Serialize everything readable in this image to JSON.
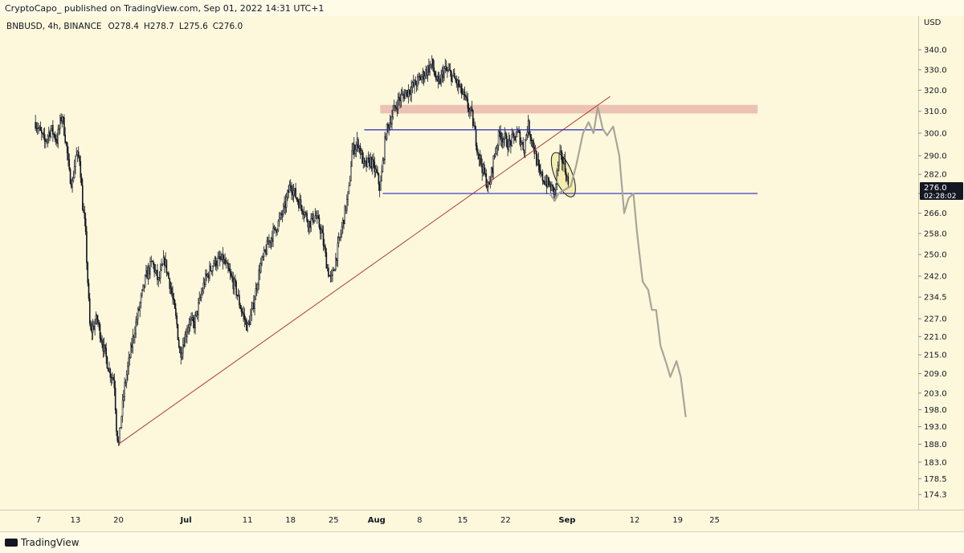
{
  "header": {
    "publish_line": "CryptoCapo_ published on TradingView.com, Sep 01, 2022 14:31 UTC+1"
  },
  "footer": {
    "brand": "TradingView"
  },
  "colors": {
    "background": "#fdf8dc",
    "candle": "#131722",
    "trendline": "#b23a3a",
    "support_lines": "#2b2bb8",
    "resistance_zone": "#e8b9ad",
    "projection": "#a8a59a",
    "highlight_ellipse": "#f1e9a0"
  },
  "chart_data": {
    "type": "candlestick",
    "symbol_line": "BNBUSD, 4h, BINANCE",
    "ohlc": {
      "open": "O278.4",
      "high": "H278.7",
      "low": "L275.6",
      "close": "C276.0"
    },
    "y_axis": {
      "unit": "USD",
      "scale": "log",
      "range": [
        171,
        345
      ],
      "ticks": [
        "340.0",
        "330.0",
        "320.0",
        "310.0",
        "300.0",
        "290.0",
        "282.0",
        "274.0",
        "266.0",
        "258.0",
        "250.0",
        "242.0",
        "234.5",
        "227.0",
        "221.0",
        "215.0",
        "209.0",
        "203.0",
        "198.0",
        "193.0",
        "188.0",
        "183.0",
        "178.5",
        "174.3"
      ]
    },
    "price_label": {
      "value": "276.0",
      "countdown": "02:28:02"
    },
    "x_axis": {
      "ticks": [
        {
          "label": "7",
          "day": 0
        },
        {
          "label": "13",
          "day": 6
        },
        {
          "label": "20",
          "day": 13
        },
        {
          "label": "Jul",
          "day": 24
        },
        {
          "label": "11",
          "day": 34
        },
        {
          "label": "18",
          "day": 41
        },
        {
          "label": "25",
          "day": 48
        },
        {
          "label": "Aug",
          "day": 55
        },
        {
          "label": "8",
          "day": 62
        },
        {
          "label": "15",
          "day": 69
        },
        {
          "label": "22",
          "day": 76
        },
        {
          "label": "Sep",
          "day": 86
        },
        {
          "label": "12",
          "day": 97
        },
        {
          "label": "19",
          "day": 104
        },
        {
          "label": "25",
          "day": 110
        }
      ]
    },
    "price_path": [
      [
        -0.5,
        305
      ],
      [
        1,
        296
      ],
      [
        2,
        302
      ],
      [
        3,
        297
      ],
      [
        3.8,
        309
      ],
      [
        4.5,
        295
      ],
      [
        5,
        282
      ],
      [
        5.5,
        278
      ],
      [
        6,
        290
      ],
      [
        6.7,
        289
      ],
      [
        7.2,
        268
      ],
      [
        7.6,
        260
      ],
      [
        8,
        240
      ],
      [
        8.4,
        222
      ],
      [
        9.5,
        227
      ],
      [
        10.5,
        218
      ],
      [
        11.5,
        210
      ],
      [
        12.3,
        207
      ],
      [
        12.7,
        192
      ],
      [
        13,
        188
      ],
      [
        14,
        205
      ],
      [
        15.5,
        222
      ],
      [
        16.5,
        232
      ],
      [
        17.5,
        242
      ],
      [
        18.5,
        247
      ],
      [
        19.5,
        240
      ],
      [
        20.5,
        248
      ],
      [
        21.5,
        238
      ],
      [
        22.5,
        225
      ],
      [
        23,
        215
      ],
      [
        24.5,
        226
      ],
      [
        25.3,
        225
      ],
      [
        27,
        240
      ],
      [
        28.5,
        247
      ],
      [
        30,
        248
      ],
      [
        31,
        243
      ],
      [
        32,
        238
      ],
      [
        33,
        230
      ],
      [
        34,
        224
      ],
      [
        34.8,
        230
      ],
      [
        36,
        245
      ],
      [
        37.5,
        255
      ],
      [
        39,
        262
      ],
      [
        40,
        268
      ],
      [
        41,
        278
      ],
      [
        42,
        272
      ],
      [
        43,
        268
      ],
      [
        44,
        262
      ],
      [
        45,
        265
      ],
      [
        46,
        259
      ],
      [
        47,
        245
      ],
      [
        47.6,
        240
      ],
      [
        48.5,
        250
      ],
      [
        49.5,
        262
      ],
      [
        50.5,
        275
      ],
      [
        51,
        292
      ],
      [
        52,
        296
      ],
      [
        53,
        285
      ],
      [
        54,
        288
      ],
      [
        55,
        282
      ],
      [
        55.6,
        276
      ],
      [
        56.5,
        300
      ],
      [
        57.5,
        308
      ],
      [
        58.5,
        315
      ],
      [
        59.5,
        318
      ],
      [
        61,
        322
      ],
      [
        62.5,
        327
      ],
      [
        64,
        333
      ],
      [
        65,
        322
      ],
      [
        66,
        330
      ],
      [
        67,
        328
      ],
      [
        68,
        324
      ],
      [
        69,
        318
      ],
      [
        70.5,
        308
      ],
      [
        71.5,
        292
      ],
      [
        72.5,
        282
      ],
      [
        73.3,
        276
      ],
      [
        74,
        288
      ],
      [
        75,
        300
      ],
      [
        76.5,
        295
      ],
      [
        78,
        300
      ],
      [
        79,
        293
      ],
      [
        79.6,
        304
      ],
      [
        80.5,
        295
      ],
      [
        81.5,
        282
      ],
      [
        82.5,
        279
      ],
      [
        83.5,
        276
      ],
      [
        84,
        274
      ],
      [
        84.7,
        290
      ],
      [
        85.5,
        287
      ],
      [
        86.3,
        276
      ]
    ],
    "ellipse": {
      "center": [
        85.4,
        282
      ],
      "price_top": 292,
      "price_bottom": 272
    },
    "trendline": [
      [
        13,
        188
      ],
      [
        93,
        317
      ]
    ],
    "resistance_zone": {
      "x": [
        55.6,
        117
      ],
      "price": [
        309,
        313
      ]
    },
    "support_lines": [
      {
        "x": [
          53,
          92
        ],
        "price": 301.5
      },
      {
        "x": [
          56,
          117
        ],
        "price": 274
      }
    ],
    "projection_path": [
      [
        83.2,
        274
      ],
      [
        84,
        271
      ],
      [
        84.6,
        274
      ],
      [
        86.6,
        277
      ],
      [
        87.5,
        286
      ],
      [
        88.6,
        300
      ],
      [
        89.5,
        305
      ],
      [
        90.3,
        300
      ],
      [
        91,
        312
      ],
      [
        91.8,
        302
      ],
      [
        92.5,
        299
      ],
      [
        93.5,
        303
      ],
      [
        94.5,
        290
      ],
      [
        95.3,
        266
      ],
      [
        96,
        272
      ],
      [
        96.8,
        274
      ],
      [
        97.4,
        258
      ],
      [
        98.3,
        240
      ],
      [
        99.2,
        237
      ],
      [
        99.8,
        230
      ],
      [
        100.5,
        230
      ],
      [
        101.2,
        218
      ],
      [
        102.2,
        212
      ],
      [
        102.8,
        208
      ],
      [
        103.8,
        213
      ],
      [
        104.5,
        208
      ],
      [
        105.3,
        196
      ]
    ]
  }
}
